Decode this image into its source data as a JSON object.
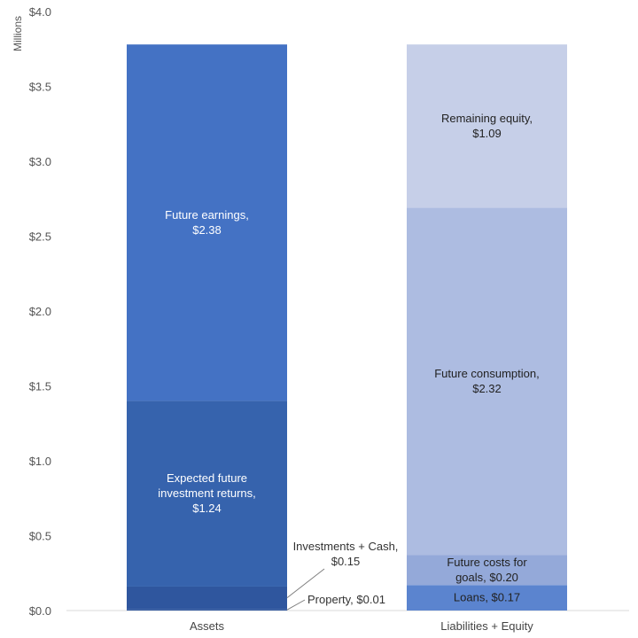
{
  "chart_data": {
    "type": "bar",
    "stacked": true,
    "categories": [
      "Assets",
      "Liabilities + Equity"
    ],
    "ylabel": "Millions",
    "ylim": [
      0,
      4.0
    ],
    "yticks": [
      "$0.0",
      "$0.5",
      "$1.0",
      "$1.5",
      "$2.0",
      "$2.5",
      "$3.0",
      "$3.5",
      "$4.0"
    ],
    "ytick_values": [
      0,
      0.5,
      1.0,
      1.5,
      2.0,
      2.5,
      3.0,
      3.5,
      4.0
    ],
    "grid": false,
    "stacks": [
      {
        "category": "Assets",
        "segments": [
          {
            "name": "Property",
            "value": 0.01,
            "color": "#2f569e",
            "label_lines": [
              "Property, $0.01"
            ],
            "label_style": "callout"
          },
          {
            "name": "Investments + Cash",
            "value": 0.15,
            "color": "#2f569e",
            "label_lines": [
              "Investments + Cash,",
              "$0.15"
            ],
            "label_style": "callout"
          },
          {
            "name": "Expected future investment returns",
            "value": 1.24,
            "color": "#3663ad",
            "label_lines": [
              "Expected future",
              "investment returns,",
              "$1.24"
            ],
            "label_style": "inside",
            "text_color": "#ffffff"
          },
          {
            "name": "Future earnings",
            "value": 2.38,
            "color": "#4472c4",
            "label_lines": [
              "Future earnings,",
              "$2.38"
            ],
            "label_style": "inside",
            "text_color": "#ffffff"
          }
        ]
      },
      {
        "category": "Liabilities + Equity",
        "segments": [
          {
            "name": "Loans",
            "value": 0.17,
            "color": "#5b84cf",
            "label_lines": [
              "Loans, $0.17"
            ],
            "label_style": "inside",
            "text_color": "#222222"
          },
          {
            "name": "Future costs for goals",
            "value": 0.2,
            "color": "#94a9d9",
            "label_lines": [
              "Future costs for",
              "goals, $0.20"
            ],
            "label_style": "inside",
            "text_color": "#222222"
          },
          {
            "name": "Future consumption",
            "value": 2.32,
            "color": "#adbce1",
            "label_lines": [
              "Future consumption,",
              "$2.32"
            ],
            "label_style": "inside",
            "text_color": "#222222"
          },
          {
            "name": "Remaining equity",
            "value": 1.09,
            "color": "#c6cfe8",
            "label_lines": [
              "Remaining equity,",
              "$1.09"
            ],
            "label_style": "inside",
            "text_color": "#222222"
          }
        ]
      }
    ]
  }
}
